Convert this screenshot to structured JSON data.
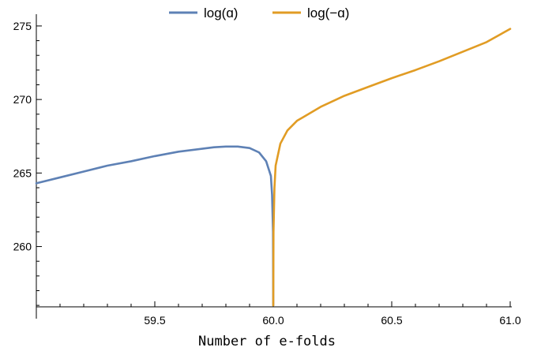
{
  "chart_data": {
    "type": "line",
    "title": "",
    "xlabel": "Number of e-folds",
    "ylabel": "",
    "xlim": [
      59.0,
      61.0
    ],
    "ylim": [
      255.9,
      275.8
    ],
    "x_ticks": [
      59.5,
      60.0,
      60.5,
      61.0
    ],
    "x_tick_labels": [
      "59.5",
      "60.0",
      "60.5",
      "61.0"
    ],
    "y_ticks": [
      260,
      265,
      270,
      275
    ],
    "y_tick_labels": [
      "260",
      "265",
      "270",
      "275"
    ],
    "grid": false,
    "legend_position": "top-center",
    "series": [
      {
        "name": "log(ɑ)",
        "color": "#5e81b5",
        "points": [
          [
            59.0,
            264.3
          ],
          [
            59.1,
            264.7
          ],
          [
            59.2,
            265.1
          ],
          [
            59.3,
            265.5
          ],
          [
            59.4,
            265.8
          ],
          [
            59.5,
            266.15
          ],
          [
            59.6,
            266.45
          ],
          [
            59.7,
            266.65
          ],
          [
            59.75,
            266.75
          ],
          [
            59.8,
            266.8
          ],
          [
            59.85,
            266.8
          ],
          [
            59.9,
            266.7
          ],
          [
            59.94,
            266.4
          ],
          [
            59.97,
            265.8
          ],
          [
            59.99,
            264.8
          ],
          [
            59.995,
            263.5
          ],
          [
            59.999,
            261.0
          ],
          [
            60.0,
            256.0
          ]
        ]
      },
      {
        "name": "log(−ɑ)",
        "color": "#e19c24",
        "points": [
          [
            60.0,
            256.0
          ],
          [
            60.001,
            261.0
          ],
          [
            60.005,
            264.0
          ],
          [
            60.01,
            265.5
          ],
          [
            60.03,
            267.0
          ],
          [
            60.06,
            267.9
          ],
          [
            60.1,
            268.55
          ],
          [
            60.2,
            269.5
          ],
          [
            60.3,
            270.25
          ],
          [
            60.4,
            270.85
          ],
          [
            60.5,
            271.45
          ],
          [
            60.6,
            272.0
          ],
          [
            60.7,
            272.6
          ],
          [
            60.8,
            273.25
          ],
          [
            60.9,
            273.9
          ],
          [
            61.0,
            274.8
          ]
        ]
      }
    ]
  }
}
